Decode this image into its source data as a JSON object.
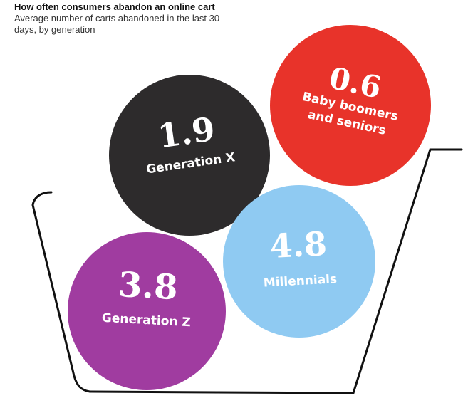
{
  "title": "How often consumers abandon an online cart",
  "subtitle": "Average number of carts abandoned in the last 30 days, by generation",
  "colors": {
    "baby_boomers": "#e8332a",
    "generation_x": "#2d2b2c",
    "generation_z": "#a03ca0",
    "millennials": "#8fcaf2"
  },
  "chart_data": {
    "type": "bubble",
    "title": "How often consumers abandon an online cart",
    "subtitle": "Average number of carts abandoned in the last 30 days, by generation",
    "points": [
      {
        "label_lines": [
          "Baby boomers",
          "and seniors"
        ],
        "value": "0.6",
        "color": "#e8332a"
      },
      {
        "label_lines": [
          "Generation X"
        ],
        "value": "1.9",
        "color": "#2d2b2c"
      },
      {
        "label_lines": [
          "Generation Z"
        ],
        "value": "3.8",
        "color": "#a03ca0"
      },
      {
        "label_lines": [
          "Millennials"
        ],
        "value": "4.8",
        "color": "#8fcaf2"
      }
    ]
  }
}
